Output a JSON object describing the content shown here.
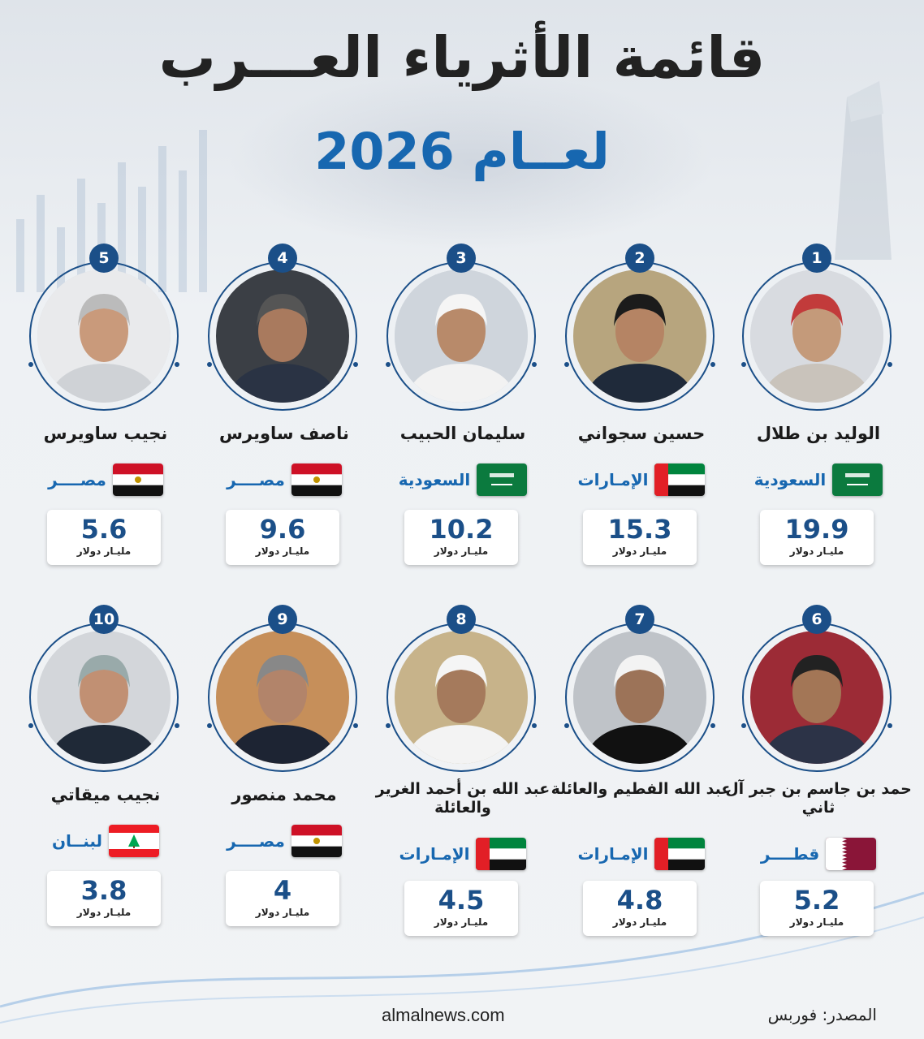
{
  "header": {
    "title": "قائمة الأثرياء العـــرب",
    "subtitle": "لعــام 2026"
  },
  "unit_label": "مليـار دولار",
  "people": [
    {
      "rank": "1",
      "name": "الوليد بن طلال",
      "country": "السعودية",
      "flag": "saudi",
      "net_worth": "19.9"
    },
    {
      "rank": "2",
      "name": "حسين سجواني",
      "country": "الإمـارات",
      "flag": "uae",
      "net_worth": "15.3"
    },
    {
      "rank": "3",
      "name": "سليمان الحبيب",
      "country": "السعودية",
      "flag": "saudi",
      "net_worth": "10.2"
    },
    {
      "rank": "4",
      "name": "ناصف ساويرس",
      "country": "مصــــر",
      "flag": "egypt",
      "net_worth": "9.6"
    },
    {
      "rank": "5",
      "name": "نجيب ساويرس",
      "country": "مصــــر",
      "flag": "egypt",
      "net_worth": "5.6"
    },
    {
      "rank": "6",
      "name": "حمد بن جاسم بن جبر آل ثاني",
      "country": "قطــــر",
      "flag": "qatar",
      "net_worth": "5.2"
    },
    {
      "rank": "7",
      "name": "عبد الله الفطيم والعائلة",
      "country": "الإمـارات",
      "flag": "uae",
      "net_worth": "4.8"
    },
    {
      "rank": "8",
      "name": "عبد الله بن أحمد الغرير والعائلة",
      "country": "الإمـارات",
      "flag": "uae",
      "net_worth": "4.5"
    },
    {
      "rank": "9",
      "name": "محمد منصور",
      "country": "مصــــر",
      "flag": "egypt",
      "net_worth": "4"
    },
    {
      "rank": "10",
      "name": "نجيب ميقاتي",
      "country": "لبنــان",
      "flag": "lebanon",
      "net_worth": "3.8"
    }
  ],
  "footer": {
    "website": "almalnews.com",
    "source": "المصدر: فوربس"
  },
  "colors": {
    "accent": "#1767b0",
    "ring": "#1b4f88",
    "title": "#222222"
  }
}
